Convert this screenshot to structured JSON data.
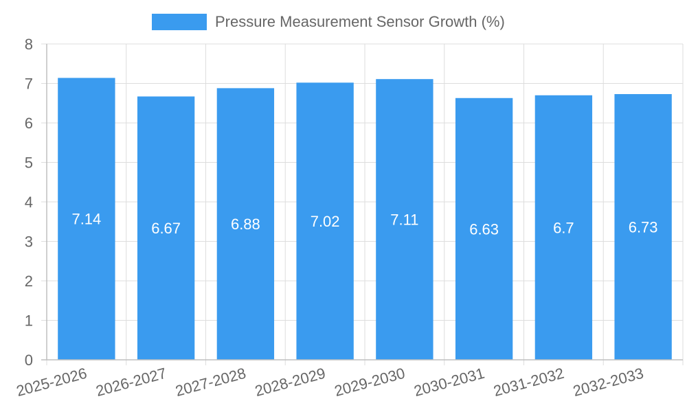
{
  "chart_data": {
    "type": "bar",
    "title": "",
    "xlabel": "",
    "ylabel": "",
    "legend": {
      "label": "Pressure Measurement Sensor Growth (%)",
      "position": "top"
    },
    "categories": [
      "2025-2026",
      "2026-2027",
      "2027-2028",
      "2028-2029",
      "2029-2030",
      "2030-2031",
      "2031-2032",
      "2032-2033"
    ],
    "values": [
      7.14,
      6.67,
      6.88,
      7.02,
      7.11,
      6.63,
      6.7,
      6.73
    ],
    "data_labels": [
      "7.14",
      "6.67",
      "6.88",
      "7.02",
      "7.11",
      "6.63",
      "6.7",
      "6.73"
    ],
    "ylim": [
      0,
      8
    ],
    "yticks": [
      "0",
      "1",
      "2",
      "3",
      "4",
      "5",
      "6",
      "7",
      "8"
    ],
    "grid": true,
    "colors": {
      "bar": "#3a9bef"
    }
  }
}
